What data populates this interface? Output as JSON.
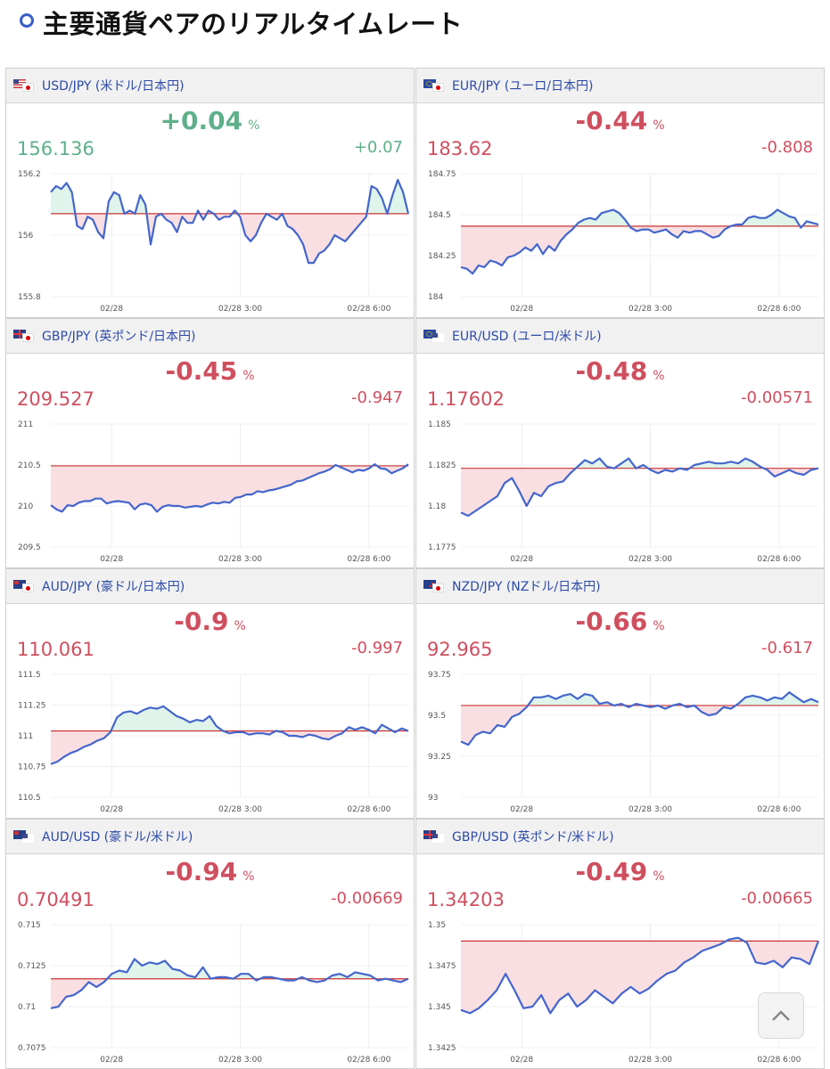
{
  "header": {
    "title": "主要通貨ペアのリアルタイムレート"
  },
  "colors": {
    "accent": "#3a5ec8",
    "up": "#5fb08a",
    "down": "#cf4f5f",
    "line": "#4466cc",
    "baseline": "#cc3333"
  },
  "icons": {
    "scroll_top": "chevron-up-icon"
  },
  "x_ticks": [
    "02/28",
    "02/28 3:00",
    "02/28 6:00"
  ],
  "pairs": [
    {
      "name": "USD/JPY (米ドル/日本円)",
      "flags": [
        "us",
        "jp"
      ],
      "pct": "+0.04",
      "pct_unit": "%",
      "price": "156.136",
      "change": "+0.07",
      "direction": "up",
      "y_ticks": [
        "156.2",
        "156",
        "155.8"
      ],
      "ylim": [
        155.8,
        156.2
      ],
      "baseline": 156.07,
      "series": [
        156.14,
        156.16,
        156.15,
        156.17,
        156.14,
        156.03,
        156.02,
        156.06,
        156.05,
        156.01,
        155.99,
        156.11,
        156.14,
        156.13,
        156.07,
        156.08,
        156.07,
        156.13,
        156.1,
        155.97,
        156.06,
        156.07,
        156.05,
        156.04,
        156.01,
        156.06,
        156.04,
        156.04,
        156.08,
        156.05,
        156.08,
        156.07,
        156.05,
        156.06,
        156.06,
        156.08,
        156.06,
        156.0,
        155.98,
        156.0,
        156.04,
        156.07,
        156.06,
        156.05,
        156.07,
        156.03,
        156.02,
        156.0,
        155.97,
        155.91,
        155.91,
        155.94,
        155.95,
        155.97,
        156.0,
        155.99,
        155.98,
        156.0,
        156.02,
        156.04,
        156.06,
        156.16,
        156.15,
        156.12,
        156.07,
        156.13,
        156.18,
        156.14,
        156.07
      ]
    },
    {
      "name": "EUR/JPY (ユーロ/日本円)",
      "flags": [
        "eu",
        "jp"
      ],
      "pct": "-0.44",
      "pct_unit": "%",
      "price": "183.62",
      "change": "-0.808",
      "direction": "down",
      "y_ticks": [
        "184.75",
        "184.5",
        "184.25",
        "184"
      ],
      "ylim": [
        184,
        184.75
      ],
      "baseline": 184.43,
      "series": [
        184.18,
        184.17,
        184.14,
        184.19,
        184.18,
        184.22,
        184.21,
        184.19,
        184.24,
        184.25,
        184.27,
        184.3,
        184.28,
        184.32,
        184.26,
        184.31,
        184.28,
        184.34,
        184.38,
        184.41,
        184.45,
        184.47,
        184.48,
        184.47,
        184.51,
        184.52,
        184.53,
        184.51,
        184.47,
        184.42,
        184.4,
        184.41,
        184.41,
        184.39,
        184.4,
        184.41,
        184.38,
        184.36,
        184.4,
        184.39,
        184.4,
        184.4,
        184.38,
        184.36,
        184.37,
        184.41,
        184.43,
        184.44,
        184.44,
        184.48,
        184.49,
        184.48,
        184.48,
        184.5,
        184.53,
        184.51,
        184.49,
        184.48,
        184.42,
        184.46,
        184.45,
        184.44
      ]
    },
    {
      "name": "GBP/JPY (英ポンド/日本円)",
      "flags": [
        "gb",
        "jp"
      ],
      "pct": "-0.45",
      "pct_unit": "%",
      "price": "209.527",
      "change": "-0.947",
      "direction": "down",
      "y_ticks": [
        "211",
        "210.5",
        "210",
        "209.5"
      ],
      "ylim": [
        209.5,
        211
      ],
      "baseline": 210.49,
      "series": [
        210.01,
        209.96,
        209.93,
        210.01,
        210.0,
        210.04,
        210.06,
        210.06,
        210.09,
        210.09,
        210.03,
        210.05,
        210.06,
        210.05,
        210.04,
        209.96,
        210.02,
        210.03,
        210.01,
        209.93,
        209.99,
        210.01,
        210.0,
        210.0,
        209.98,
        209.99,
        210.0,
        209.99,
        210.02,
        210.04,
        210.03,
        210.05,
        210.04,
        210.1,
        210.11,
        210.14,
        210.14,
        210.18,
        210.17,
        210.19,
        210.2,
        210.22,
        210.24,
        210.26,
        210.3,
        210.31,
        210.34,
        210.37,
        210.4,
        210.42,
        210.45,
        210.5,
        210.47,
        210.44,
        210.41,
        210.44,
        210.43,
        210.46,
        210.51,
        210.46,
        210.45,
        210.4,
        210.43,
        210.46,
        210.51
      ]
    },
    {
      "name": "EUR/USD (ユーロ/米ドル)",
      "flags": [
        "eu",
        "us"
      ],
      "pct": "-0.48",
      "pct_unit": "%",
      "price": "1.17602",
      "change": "-0.00571",
      "direction": "down",
      "y_ticks": [
        "1.185",
        "1.1825",
        "1.18",
        "1.1775"
      ],
      "ylim": [
        1.1775,
        1.185
      ],
      "baseline": 1.1823,
      "series": [
        1.1796,
        1.1794,
        1.1797,
        1.18,
        1.1803,
        1.1806,
        1.1814,
        1.1817,
        1.1809,
        1.18,
        1.1808,
        1.1806,
        1.1812,
        1.1814,
        1.1815,
        1.182,
        1.1824,
        1.1828,
        1.1826,
        1.1829,
        1.1824,
        1.1823,
        1.1826,
        1.1829,
        1.1823,
        1.1825,
        1.1822,
        1.182,
        1.1822,
        1.1821,
        1.1823,
        1.1822,
        1.1825,
        1.1826,
        1.1827,
        1.1826,
        1.1826,
        1.1827,
        1.1826,
        1.1829,
        1.1827,
        1.1824,
        1.1822,
        1.1818,
        1.182,
        1.1822,
        1.182,
        1.1819,
        1.1822,
        1.1823
      ]
    },
    {
      "name": "AUD/JPY (豪ドル/日本円)",
      "flags": [
        "au",
        "jp"
      ],
      "pct": "-0.9",
      "pct_unit": "%",
      "price": "110.061",
      "change": "-0.997",
      "direction": "down",
      "y_ticks": [
        "111.5",
        "111.25",
        "111",
        "110.75",
        "110.5"
      ],
      "ylim": [
        110.5,
        111.5
      ],
      "baseline": 111.04,
      "series": [
        110.77,
        110.79,
        110.83,
        110.86,
        110.88,
        110.91,
        110.93,
        110.96,
        110.98,
        111.03,
        111.15,
        111.19,
        111.2,
        111.18,
        111.21,
        111.23,
        111.22,
        111.24,
        111.2,
        111.16,
        111.14,
        111.11,
        111.13,
        111.12,
        111.16,
        111.08,
        111.04,
        111.02,
        111.03,
        111.03,
        111.01,
        111.02,
        111.02,
        111.01,
        111.04,
        111.03,
        111.0,
        111.0,
        110.99,
        111.01,
        111.0,
        110.98,
        110.97,
        111.0,
        111.02,
        111.07,
        111.05,
        111.07,
        111.05,
        111.02,
        111.09,
        111.06,
        111.03,
        111.06,
        111.04
      ]
    },
    {
      "name": "NZD/JPY (NZドル/日本円)",
      "flags": [
        "nz",
        "jp"
      ],
      "pct": "-0.66",
      "pct_unit": "%",
      "price": "92.965",
      "change": "-0.617",
      "direction": "down",
      "y_ticks": [
        "93.75",
        "93.5",
        "93.25",
        "93"
      ],
      "ylim": [
        93,
        93.75
      ],
      "baseline": 93.56,
      "series": [
        93.34,
        93.32,
        93.38,
        93.4,
        93.39,
        93.44,
        93.43,
        93.49,
        93.51,
        93.55,
        93.61,
        93.61,
        93.62,
        93.6,
        93.62,
        93.63,
        93.6,
        93.63,
        93.62,
        93.57,
        93.58,
        93.56,
        93.57,
        93.55,
        93.57,
        93.56,
        93.55,
        93.56,
        93.54,
        93.56,
        93.57,
        93.55,
        93.56,
        93.52,
        93.5,
        93.51,
        93.55,
        93.54,
        93.57,
        93.61,
        93.62,
        93.61,
        93.59,
        93.61,
        93.6,
        93.64,
        93.61,
        93.58,
        93.6,
        93.58
      ]
    },
    {
      "name": "AUD/USD (豪ドル/米ドル)",
      "flags": [
        "au",
        "us"
      ],
      "pct": "-0.94",
      "pct_unit": "%",
      "price": "0.70491",
      "change": "-0.00669",
      "direction": "down",
      "y_ticks": [
        "0.715",
        "0.7125",
        "0.71",
        "0.7075"
      ],
      "ylim": [
        0.7075,
        0.715
      ],
      "baseline": 0.7117,
      "series": [
        0.7099,
        0.71,
        0.7106,
        0.7107,
        0.711,
        0.7115,
        0.7112,
        0.7115,
        0.712,
        0.7122,
        0.7121,
        0.7129,
        0.7125,
        0.7127,
        0.7126,
        0.7128,
        0.7123,
        0.7122,
        0.7119,
        0.7118,
        0.7124,
        0.7117,
        0.7118,
        0.7118,
        0.7117,
        0.712,
        0.712,
        0.7116,
        0.7118,
        0.7118,
        0.7117,
        0.7116,
        0.7116,
        0.7118,
        0.7116,
        0.7115,
        0.7116,
        0.7119,
        0.712,
        0.7118,
        0.7121,
        0.712,
        0.7119,
        0.7116,
        0.7117,
        0.7116,
        0.7115,
        0.7117
      ]
    },
    {
      "name": "GBP/USD (英ポンド/米ドル)",
      "flags": [
        "gb",
        "us"
      ],
      "pct": "-0.49",
      "pct_unit": "%",
      "price": "1.34203",
      "change": "-0.00665",
      "direction": "down",
      "y_ticks": [
        "1.35",
        "1.3475",
        "1.345",
        "1.3425"
      ],
      "ylim": [
        1.3425,
        1.35
      ],
      "baseline": 1.349,
      "series": [
        1.3448,
        1.3446,
        1.3449,
        1.3454,
        1.346,
        1.347,
        1.346,
        1.3449,
        1.345,
        1.3457,
        1.3446,
        1.3454,
        1.3458,
        1.345,
        1.3454,
        1.346,
        1.3456,
        1.3452,
        1.3458,
        1.3462,
        1.3458,
        1.3461,
        1.3466,
        1.347,
        1.3472,
        1.3477,
        1.348,
        1.3484,
        1.3486,
        1.3488,
        1.3491,
        1.3492,
        1.3489,
        1.3477,
        1.3476,
        1.3478,
        1.3474,
        1.348,
        1.3479,
        1.3476,
        1.349
      ]
    }
  ]
}
